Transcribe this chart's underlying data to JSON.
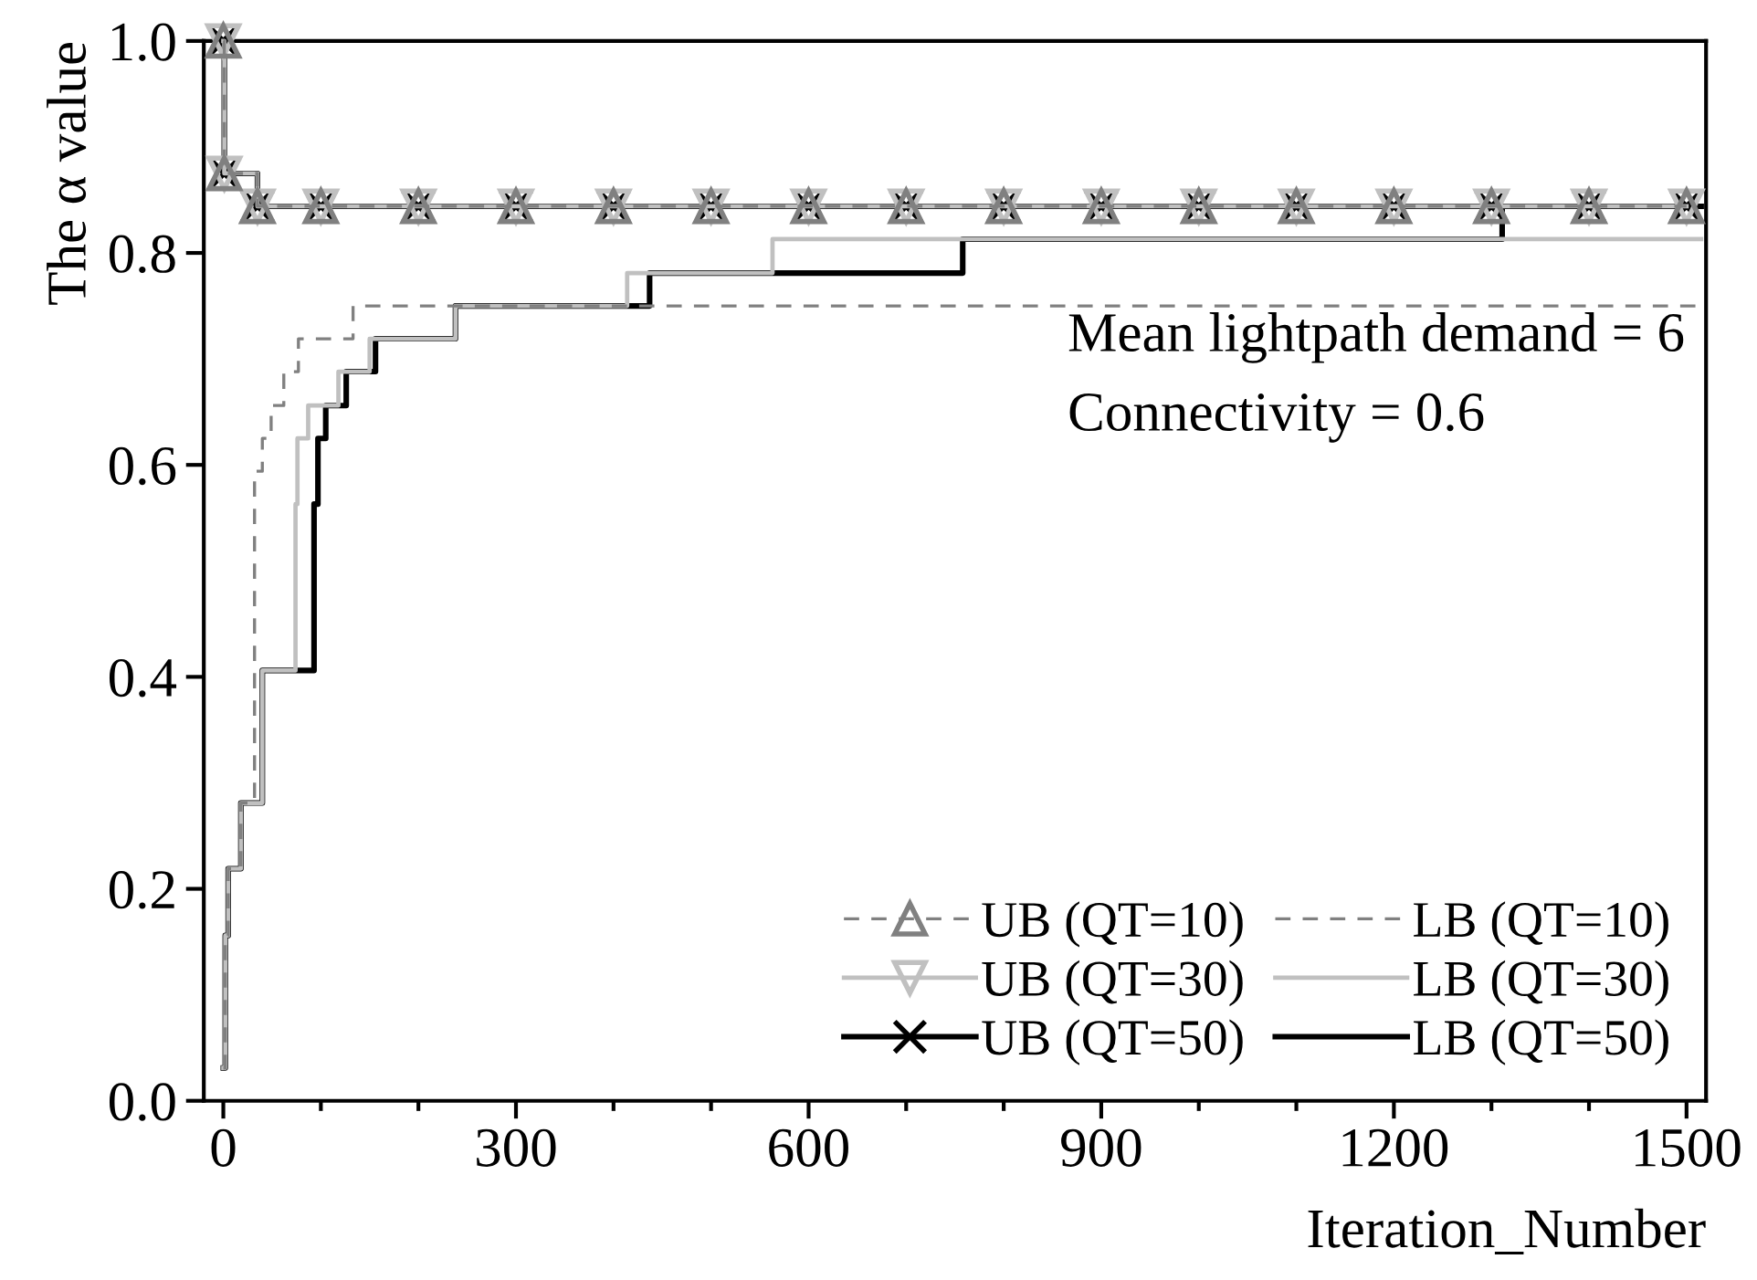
{
  "chart_data": {
    "type": "step",
    "xlabel": "Iteration_Number",
    "ylabel": "The α value",
    "annotations": [
      "Mean lightpath demand = 6",
      "Connectivity = 0.6"
    ],
    "xlim": [
      -20,
      1520
    ],
    "ylim": [
      0,
      1.0
    ],
    "xticks": [
      0,
      {
        "value": 100,
        "label": null
      },
      {
        "value": 200,
        "label": null
      },
      300,
      {
        "value": 400,
        "label": null
      },
      {
        "value": 500,
        "label": null
      },
      600,
      {
        "value": 700,
        "label": null
      },
      {
        "value": 800,
        "label": null
      },
      900,
      {
        "value": 1000,
        "label": null
      },
      {
        "value": 1100,
        "label": null
      },
      1200,
      {
        "value": 1300,
        "label": null
      },
      {
        "value": 1400,
        "label": null
      },
      1500
    ],
    "yticks": [
      {
        "value": 0,
        "label": "0.0"
      },
      0.2,
      0.4,
      0.6,
      0.8,
      {
        "value": 1.0,
        "label": "1.0"
      }
    ],
    "grid": false,
    "legend": "bottom right",
    "series": [
      {
        "name": "UB (QT=10)",
        "color": "#808080",
        "line_style": "dashed",
        "marker": "triangle",
        "x": [
          0,
          1,
          35,
          100,
          200,
          300,
          400,
          500,
          600,
          700,
          800,
          900,
          1000,
          1100,
          1200,
          1300,
          1400,
          1500
        ],
        "values": [
          1.0,
          0.875,
          0.844,
          0.844,
          0.844,
          0.844,
          0.844,
          0.844,
          0.844,
          0.844,
          0.844,
          0.844,
          0.844,
          0.844,
          0.844,
          0.844,
          0.844,
          0.844
        ]
      },
      {
        "name": "UB (QT=30)",
        "color": "#c0c0c0",
        "line_style": "solid",
        "marker": "triangle_down",
        "x": [
          0,
          1,
          35,
          100,
          200,
          300,
          400,
          500,
          600,
          700,
          800,
          900,
          1000,
          1100,
          1200,
          1300,
          1400,
          1500
        ],
        "values": [
          1.0,
          0.875,
          0.844,
          0.844,
          0.844,
          0.844,
          0.844,
          0.844,
          0.844,
          0.844,
          0.844,
          0.844,
          0.844,
          0.844,
          0.844,
          0.844,
          0.844,
          0.844
        ]
      },
      {
        "name": "UB (QT=50)",
        "color": "#000000",
        "line_style": "solid",
        "marker": "cross",
        "x": [
          0,
          1,
          35,
          100,
          200,
          300,
          400,
          500,
          600,
          700,
          800,
          900,
          1000,
          1100,
          1200,
          1300,
          1400,
          1500
        ],
        "values": [
          1.0,
          0.875,
          0.844,
          0.844,
          0.844,
          0.844,
          0.844,
          0.844,
          0.844,
          0.844,
          0.844,
          0.844,
          0.844,
          0.844,
          0.844,
          0.844,
          0.844,
          0.844
        ]
      },
      {
        "name": "LB (QT=10)",
        "color": "#808080",
        "line_style": "dashed",
        "marker": "none",
        "x": [
          0,
          2,
          5,
          18,
          32,
          40,
          49,
          62,
          77,
          133,
          1515
        ],
        "values": [
          0.031,
          0.156,
          0.219,
          0.281,
          0.594,
          0.625,
          0.656,
          0.688,
          0.719,
          0.75,
          0.75
        ]
      },
      {
        "name": "LB (QT=30)",
        "color": "#c0c0c0",
        "line_style": "solid",
        "marker": "none",
        "x": [
          0,
          2,
          5,
          18,
          40,
          74,
          76,
          87,
          118,
          150,
          238,
          414,
          563,
          1515
        ],
        "values": [
          0.031,
          0.156,
          0.219,
          0.281,
          0.406,
          0.563,
          0.625,
          0.656,
          0.688,
          0.719,
          0.75,
          0.781,
          0.813,
          0.813
        ]
      },
      {
        "name": "LB (QT=50)",
        "color": "#000000",
        "line_style": "solid",
        "marker": "none",
        "x": [
          0,
          2,
          5,
          18,
          40,
          93,
          97,
          105,
          126,
          156,
          238,
          437,
          758,
          1311,
          1515
        ],
        "values": [
          0.031,
          0.156,
          0.219,
          0.281,
          0.406,
          0.563,
          0.625,
          0.656,
          0.688,
          0.719,
          0.75,
          0.781,
          0.813,
          0.844,
          0.844
        ]
      }
    ]
  }
}
